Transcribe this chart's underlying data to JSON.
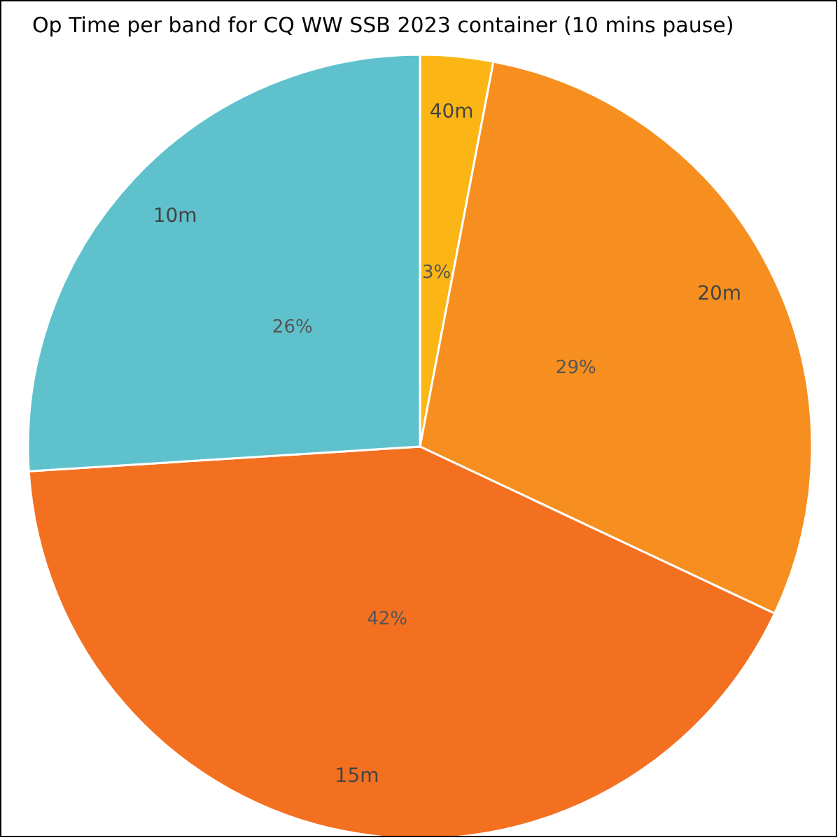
{
  "chart_data": {
    "type": "pie",
    "title": "Op Time per band for CQ WW SSB 2023 container (10 mins pause)",
    "categories": [
      "40m",
      "20m",
      "15m",
      "10m"
    ],
    "values": [
      3,
      29,
      42,
      26
    ],
    "value_labels": [
      "3%",
      "29%",
      "42%",
      "26%"
    ],
    "colors": [
      "#fbb615",
      "#f68f1f",
      "#f37021",
      "#5fc1cc"
    ],
    "legend": false
  }
}
